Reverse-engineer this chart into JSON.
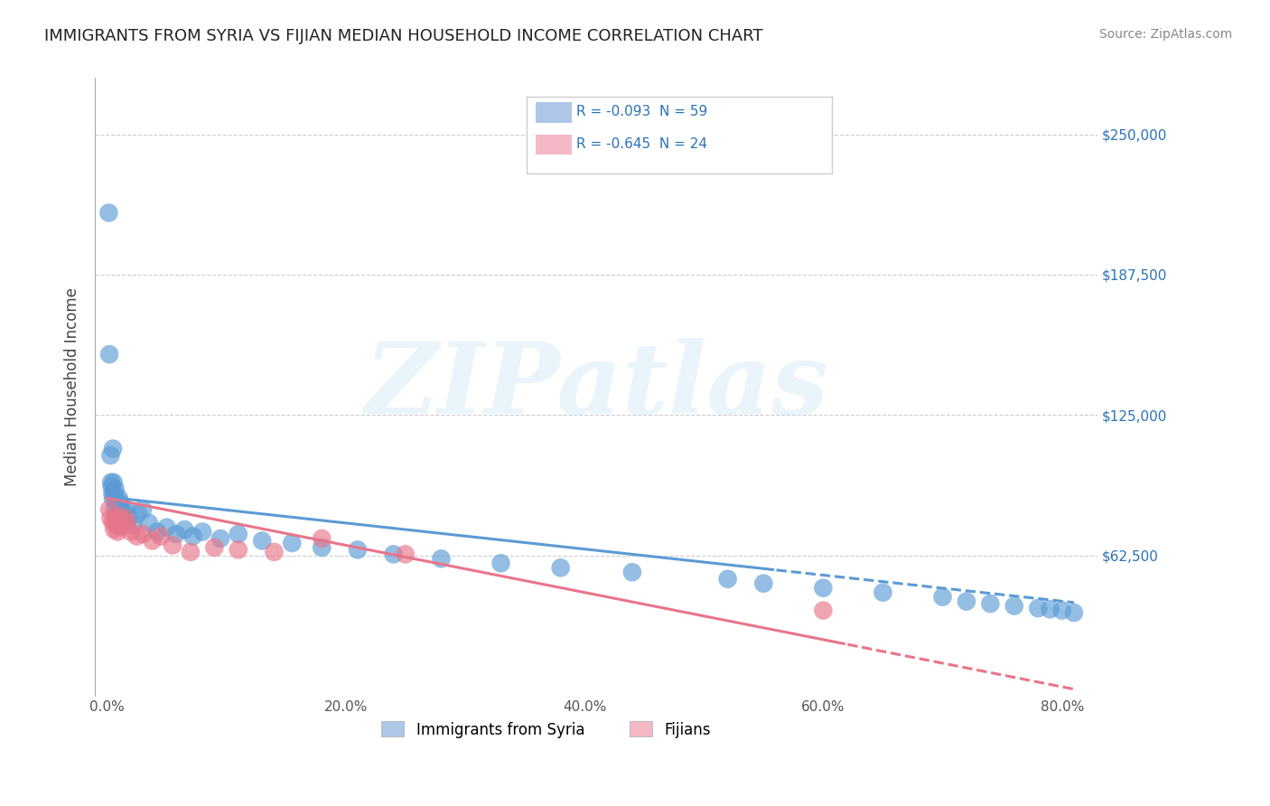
{
  "title": "IMMIGRANTS FROM SYRIA VS FIJIAN MEDIAN HOUSEHOLD INCOME CORRELATION CHART",
  "source": "Source: ZipAtlas.com",
  "ylabel": "Median Household Income",
  "yticks": [
    0,
    62500,
    125000,
    187500,
    250000
  ],
  "ytick_labels": [
    "",
    "$62,500",
    "$125,000",
    "$187,500",
    "$250,000"
  ],
  "xticks": [
    0.0,
    20.0,
    40.0,
    60.0,
    80.0
  ],
  "xtick_labels": [
    "0.0%",
    "20.0%",
    "40.0%",
    "60.0%",
    "80.0%"
  ],
  "ylim": [
    0,
    275000
  ],
  "xlim": [
    -1,
    83
  ],
  "legend_entries": [
    {
      "label": "R = -0.093  N = 59",
      "color": "#aec6e8"
    },
    {
      "label": "R = -0.645  N = 24",
      "color": "#f4b8c6"
    }
  ],
  "legend_label_syria": "Immigrants from Syria",
  "legend_label_fijian": "Fijians",
  "blue_color": "#5b9bd5",
  "pink_color": "#e8758a",
  "blue_light": "#aec6e8",
  "pink_light": "#f4b8c6",
  "syria_x": [
    0.15,
    0.2,
    0.3,
    0.35,
    0.4,
    0.45,
    0.5,
    0.5,
    0.55,
    0.6,
    0.65,
    0.7,
    0.75,
    0.8,
    0.85,
    0.9,
    0.95,
    1.0,
    1.05,
    1.1,
    1.15,
    1.2,
    1.3,
    1.4,
    1.6,
    1.8,
    2.2,
    2.6,
    3.0,
    3.5,
    4.2,
    5.0,
    5.8,
    6.5,
    7.2,
    8.0,
    9.5,
    11.0,
    13.0,
    15.5,
    18.0,
    21.0,
    24.0,
    28.0,
    33.0,
    38.0,
    44.0,
    52.0,
    55.0,
    60.0,
    65.0,
    70.0,
    72.0,
    74.0,
    76.0,
    78.0,
    79.0,
    80.0,
    81.0
  ],
  "syria_y": [
    215000,
    152000,
    107000,
    95000,
    93000,
    90000,
    110000,
    88000,
    95000,
    90000,
    84000,
    92000,
    80000,
    86000,
    78000,
    84000,
    76000,
    88000,
    81000,
    86000,
    79000,
    83000,
    76000,
    82000,
    83000,
    79000,
    76000,
    81000,
    83000,
    77000,
    73000,
    75000,
    72000,
    74000,
    71000,
    73000,
    70000,
    72000,
    69000,
    68000,
    66000,
    65000,
    63000,
    61000,
    59000,
    57000,
    55000,
    52000,
    50000,
    48000,
    46000,
    44000,
    42000,
    41000,
    40000,
    39000,
    38500,
    38000,
    37000
  ],
  "fijian_x": [
    0.2,
    0.3,
    0.5,
    0.6,
    0.7,
    0.8,
    0.9,
    1.0,
    1.2,
    1.5,
    1.7,
    2.0,
    2.5,
    3.0,
    3.8,
    4.5,
    5.5,
    7.0,
    9.0,
    11.0,
    14.0,
    18.0,
    25.0,
    60.0
  ],
  "fijian_y": [
    83000,
    79000,
    77000,
    74000,
    79000,
    76000,
    73000,
    80000,
    75000,
    79000,
    77000,
    73000,
    71000,
    72000,
    69000,
    71000,
    67000,
    64000,
    66000,
    65000,
    64000,
    70000,
    63000,
    38000
  ],
  "blue_reg_intercept": 88500,
  "blue_reg_slope": -580,
  "pink_reg_intercept": 88000,
  "pink_reg_slope": -1050,
  "blue_solid_end": 56,
  "pink_solid_end": 62
}
